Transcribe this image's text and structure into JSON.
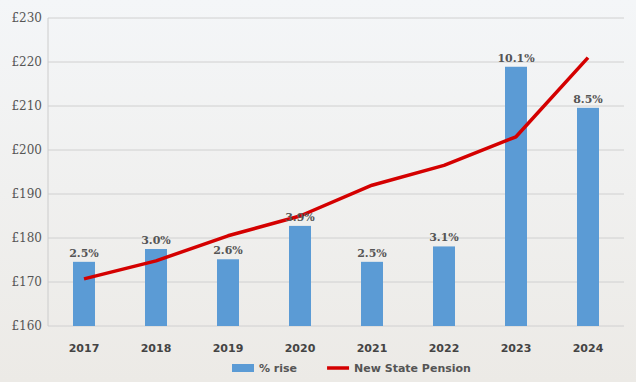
{
  "chart_data": {
    "type": "bar",
    "categories": [
      "2017",
      "2018",
      "2019",
      "2020",
      "2021",
      "2022",
      "2023",
      "2024"
    ],
    "series": [
      {
        "name": "% rise",
        "type": "bar",
        "color": "#5b9bd5",
        "axis": "y2",
        "values": [
          2.5,
          3.0,
          2.6,
          3.9,
          2.5,
          3.1,
          10.1,
          8.5
        ],
        "value_labels": [
          "2.5%",
          "3.0%",
          "2.6%",
          "3.9%",
          "2.5%",
          "3.1%",
          "10.1%",
          "8.5%"
        ]
      },
      {
        "name": "New State Pension",
        "type": "line",
        "color": "#d40000",
        "values": [
          170.7,
          174.8,
          180.5,
          185,
          192,
          196.5,
          203,
          221
        ]
      }
    ],
    "ylim": [
      160,
      230
    ],
    "yticks": [
      {
        "value": 160,
        "label": "£160"
      },
      {
        "value": 170,
        "label": "£170"
      },
      {
        "value": 180,
        "label": "£180"
      },
      {
        "value": 190,
        "label": "£190"
      },
      {
        "value": 200,
        "label": "£200"
      },
      {
        "value": 210,
        "label": "£210"
      },
      {
        "value": 220,
        "label": "£220"
      },
      {
        "value": 230,
        "label": "£230"
      }
    ],
    "y2lim": [
      0,
      12
    ],
    "grid": true,
    "legend": "bottom",
    "data_labels": true
  }
}
